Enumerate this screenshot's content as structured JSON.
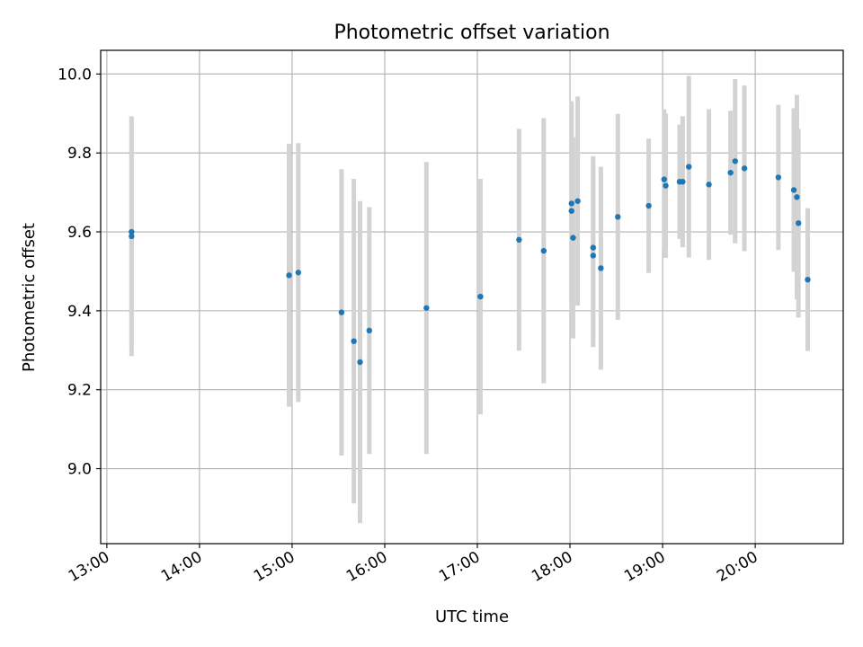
{
  "chart_data": {
    "type": "scatter",
    "title": "Photometric offset variation",
    "xlabel": "UTC time",
    "ylabel": "Photometric offset",
    "x_axis_type": "time",
    "xlim": [
      "12:56",
      "20:57"
    ],
    "ylim": [
      8.81,
      10.06
    ],
    "x_ticks": [
      "13:00",
      "14:00",
      "15:00",
      "16:00",
      "17:00",
      "18:00",
      "19:00",
      "20:00"
    ],
    "y_ticks": [
      "9.0",
      "9.2",
      "9.4",
      "9.6",
      "9.8",
      "10.0"
    ],
    "grid": true,
    "legend": "none",
    "marker_color": "#1f77b4",
    "errorbar_color": "#d3d3d3",
    "points": [
      {
        "t": "13:16",
        "y": 9.6,
        "err": 0.292
      },
      {
        "t": "13:16",
        "y": 9.589,
        "err": 0.304
      },
      {
        "t": "14:58",
        "y": 9.49,
        "err": 0.333
      },
      {
        "t": "15:04",
        "y": 9.497,
        "err": 0.328
      },
      {
        "t": "15:32",
        "y": 9.396,
        "err": 0.363
      },
      {
        "t": "15:40",
        "y": 9.323,
        "err": 0.411
      },
      {
        "t": "15:44",
        "y": 9.27,
        "err": 0.408
      },
      {
        "t": "15:50",
        "y": 9.35,
        "err": 0.313
      },
      {
        "t": "16:27",
        "y": 9.407,
        "err": 0.37
      },
      {
        "t": "17:02",
        "y": 9.436,
        "err": 0.298
      },
      {
        "t": "17:27",
        "y": 9.58,
        "err": 0.281
      },
      {
        "t": "17:43",
        "y": 9.552,
        "err": 0.336
      },
      {
        "t": "18:01",
        "y": 9.672,
        "err": 0.259
      },
      {
        "t": "18:01",
        "y": 9.653,
        "err": 0.259
      },
      {
        "t": "18:02",
        "y": 9.585,
        "err": 0.255
      },
      {
        "t": "18:05",
        "y": 9.678,
        "err": 0.265
      },
      {
        "t": "18:15",
        "y": 9.56,
        "err": 0.232
      },
      {
        "t": "18:15",
        "y": 9.54,
        "err": 0.232
      },
      {
        "t": "18:20",
        "y": 9.508,
        "err": 0.257
      },
      {
        "t": "18:31",
        "y": 9.638,
        "err": 0.261
      },
      {
        "t": "18:51",
        "y": 9.666,
        "err": 0.17
      },
      {
        "t": "19:01",
        "y": 9.733,
        "err": 0.178
      },
      {
        "t": "19:02",
        "y": 9.717,
        "err": 0.183
      },
      {
        "t": "19:11",
        "y": 9.727,
        "err": 0.145
      },
      {
        "t": "19:13",
        "y": 9.727,
        "err": 0.166
      },
      {
        "t": "19:17",
        "y": 9.765,
        "err": 0.23
      },
      {
        "t": "19:30",
        "y": 9.72,
        "err": 0.191
      },
      {
        "t": "19:44",
        "y": 9.75,
        "err": 0.157
      },
      {
        "t": "19:47",
        "y": 9.779,
        "err": 0.208
      },
      {
        "t": "19:53",
        "y": 9.761,
        "err": 0.21
      },
      {
        "t": "20:15",
        "y": 9.738,
        "err": 0.184
      },
      {
        "t": "20:25",
        "y": 9.706,
        "err": 0.207
      },
      {
        "t": "20:27",
        "y": 9.688,
        "err": 0.259
      },
      {
        "t": "20:28",
        "y": 9.622,
        "err": 0.239
      },
      {
        "t": "20:34",
        "y": 9.479,
        "err": 0.181
      }
    ]
  }
}
